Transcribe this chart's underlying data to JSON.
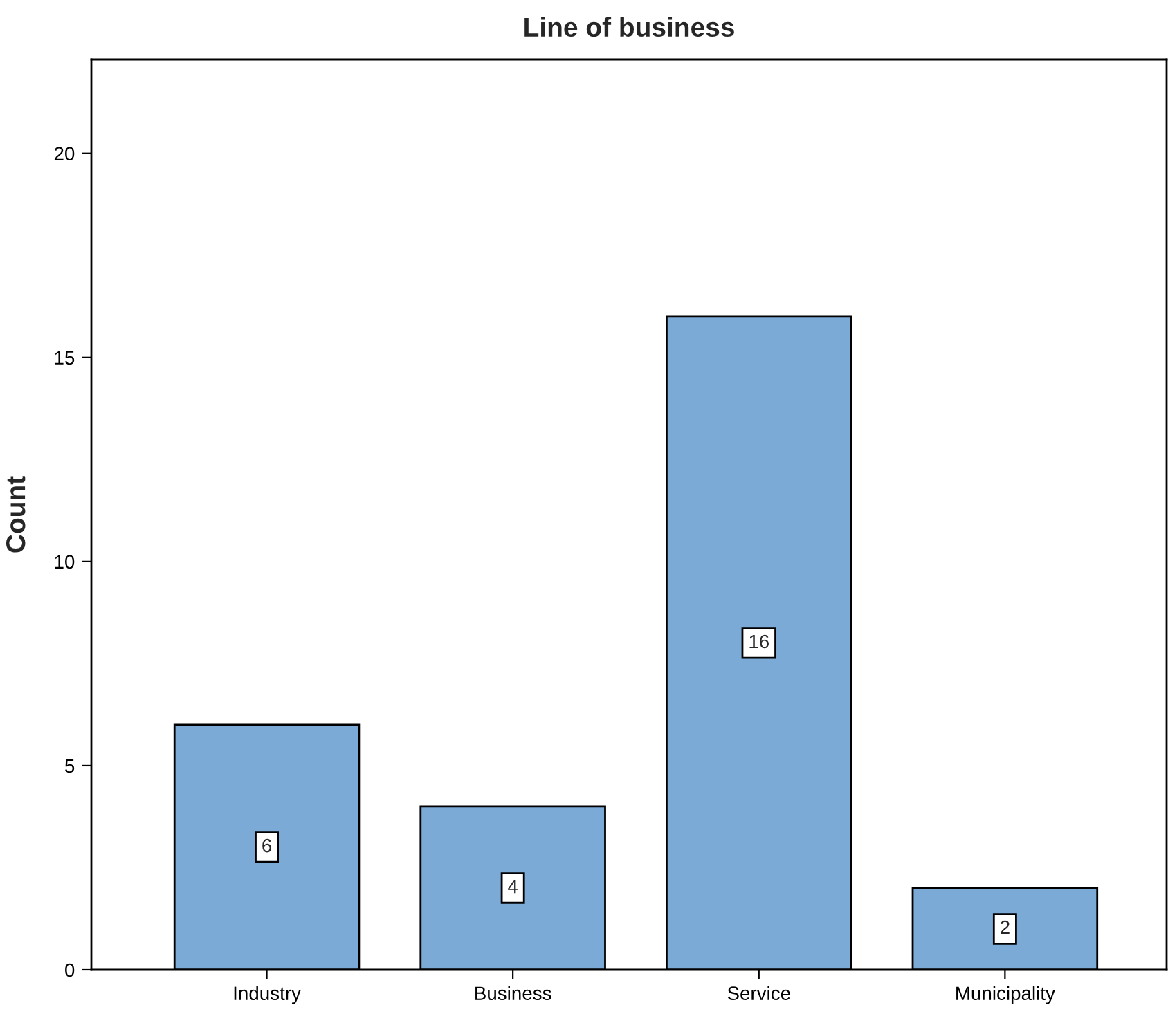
{
  "chart_data": {
    "type": "bar",
    "title": "Line of business",
    "ylabel": "Count",
    "categories": [
      "Industry",
      "Business",
      "Service",
      "Municipality"
    ],
    "values": [
      6,
      4,
      16,
      2
    ],
    "color": "#7baad7",
    "ylim": [
      0,
      22.3
    ],
    "yticks": [
      0,
      5,
      10,
      15,
      20
    ],
    "grid": false,
    "data_labels": true
  }
}
